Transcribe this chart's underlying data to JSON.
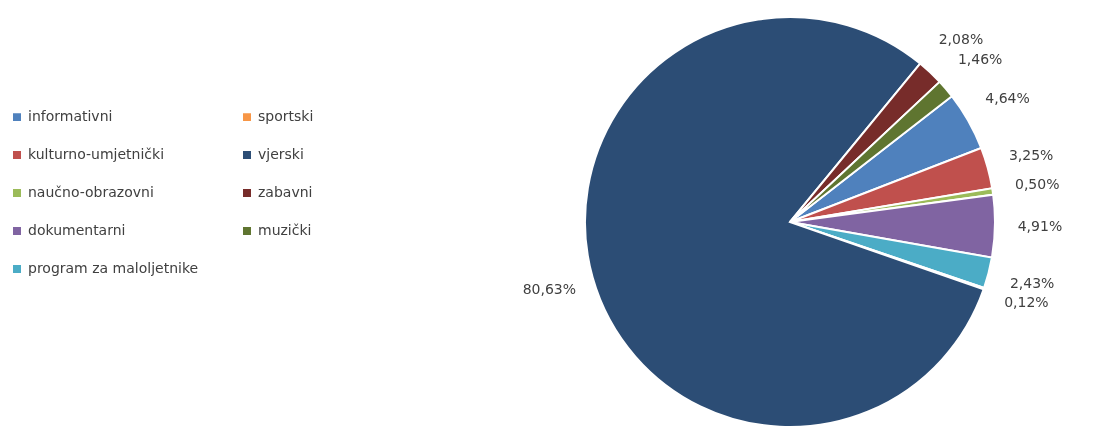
{
  "chart_data": {
    "type": "pie",
    "categories": [
      "informativni",
      "kulturno-umjetnički",
      "naučno-obrazovni",
      "dokumentarni",
      "program za maloljetnike",
      "sportski",
      "vjerski",
      "zabavni",
      "muzički"
    ],
    "values": [
      4.64,
      3.25,
      0.5,
      4.91,
      2.43,
      0.12,
      80.63,
      2.08,
      1.46
    ],
    "value_labels": [
      "4,64%",
      "3,25%",
      "0,50%",
      "4,91%",
      "2,43%",
      "0,12%",
      "80,63%",
      "2,08%",
      "1,46%"
    ],
    "colors": [
      "#4f81bd",
      "#c0504d",
      "#9bbb59",
      "#8064a2",
      "#4bacc6",
      "#f79646",
      "#2c4d75",
      "#772c2a",
      "#5f7530"
    ],
    "legend": "left"
  }
}
